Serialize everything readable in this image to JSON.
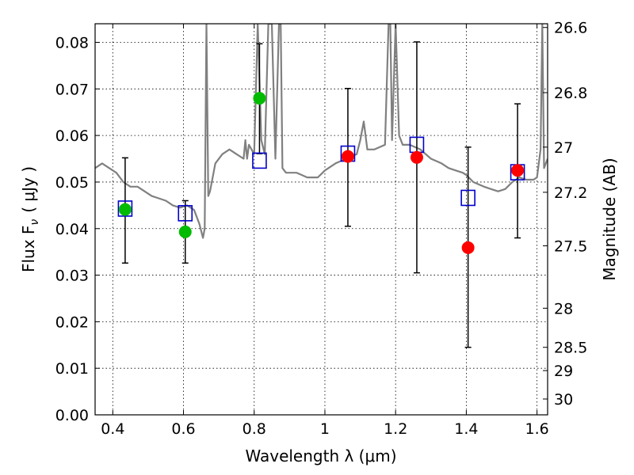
{
  "chart_data": {
    "type": "scatter",
    "title": "",
    "xlabel": "Wavelength  λ (μm)",
    "ylabel": "Flux  F",
    "ylabel_sub": "ν",
    "ylabel_unit": "( μJy )",
    "ylabel_right": "Magnitude (AB)",
    "xlim": [
      0.35,
      1.63
    ],
    "ylim": [
      0.0,
      0.084
    ],
    "grid": true,
    "x_ticks": [
      0.4,
      0.6,
      0.8,
      1.0,
      1.2,
      1.4,
      1.6
    ],
    "x_tick_labels": [
      "0.4",
      "0.6",
      "0.8",
      "1",
      "1.2",
      "1.4",
      "1.6"
    ],
    "y_ticks": [
      0.0,
      0.01,
      0.02,
      0.03,
      0.04,
      0.05,
      0.06,
      0.07,
      0.08
    ],
    "y_tick_labels": [
      "0.00",
      "0.01",
      "0.02",
      "0.03",
      "0.04",
      "0.05",
      "0.06",
      "0.07",
      "0.08"
    ],
    "right_ticks": [
      {
        "flux": 0.0832,
        "label": "26.6"
      },
      {
        "flux": 0.0692,
        "label": "26.8"
      },
      {
        "flux": 0.0575,
        "label": "27"
      },
      {
        "flux": 0.0478,
        "label": "27.2"
      },
      {
        "flux": 0.0363,
        "label": "27.5"
      },
      {
        "flux": 0.0229,
        "label": "28"
      },
      {
        "flux": 0.0145,
        "label": "28.5"
      },
      {
        "flux": 0.0095,
        "label": "29"
      },
      {
        "flux": 0.0034,
        "label": "30"
      }
    ],
    "colors": {
      "spectrum": "#808080",
      "green_points": "#00bb00",
      "red_points": "#ff0000",
      "model_boxes": "#0000cc",
      "error_bars": "#000000"
    },
    "series": [
      {
        "kind": "spectrum",
        "x": [
          0.35,
          0.37,
          0.39,
          0.41,
          0.43,
          0.45,
          0.47,
          0.49,
          0.51,
          0.53,
          0.55,
          0.57,
          0.59,
          0.61,
          0.63,
          0.645,
          0.655,
          0.66,
          0.665,
          0.67,
          0.675,
          0.69,
          0.71,
          0.73,
          0.75,
          0.77,
          0.775,
          0.78,
          0.785,
          0.8,
          0.81,
          0.82,
          0.83,
          0.84,
          0.85,
          0.86,
          0.87,
          0.875,
          0.88,
          0.89,
          0.9,
          0.92,
          0.95,
          0.98,
          1.0,
          1.03,
          1.06,
          1.09,
          1.1,
          1.11,
          1.12,
          1.14,
          1.17,
          1.18,
          1.185,
          1.19,
          1.2,
          1.21,
          1.22,
          1.24,
          1.27,
          1.3,
          1.33,
          1.35,
          1.37,
          1.39,
          1.4,
          1.42,
          1.45,
          1.47,
          1.49,
          1.51,
          1.53,
          1.55,
          1.57,
          1.59,
          1.6,
          1.61,
          1.615,
          1.62,
          1.63
        ],
        "y": [
          0.053,
          0.054,
          0.053,
          0.052,
          0.05,
          0.049,
          0.049,
          0.048,
          0.047,
          0.0465,
          0.046,
          0.045,
          0.0445,
          0.045,
          0.044,
          0.041,
          0.038,
          0.04,
          0.084,
          0.047,
          0.048,
          0.054,
          0.056,
          0.057,
          0.056,
          0.055,
          0.059,
          0.055,
          0.058,
          0.056,
          0.084,
          0.059,
          0.056,
          0.084,
          0.084,
          0.055,
          0.084,
          0.084,
          0.053,
          0.052,
          0.052,
          0.052,
          0.051,
          0.051,
          0.0525,
          0.054,
          0.055,
          0.056,
          0.059,
          0.063,
          0.057,
          0.057,
          0.058,
          0.084,
          0.084,
          0.059,
          0.084,
          0.06,
          0.058,
          0.058,
          0.057,
          0.055,
          0.054,
          0.053,
          0.0525,
          0.052,
          0.0515,
          0.05,
          0.049,
          0.0485,
          0.048,
          0.0485,
          0.05,
          0.051,
          0.0505,
          0.0505,
          0.051,
          0.057,
          0.084,
          0.053,
          0.055
        ]
      },
      {
        "kind": "model-boxes",
        "x": [
          0.435,
          0.605,
          0.815,
          1.065,
          1.26,
          1.405,
          1.545
        ],
        "y": [
          0.0443,
          0.0433,
          0.0546,
          0.0561,
          0.058,
          0.0466,
          0.0521
        ]
      },
      {
        "kind": "observed-green",
        "x": [
          0.435,
          0.605,
          0.815
        ],
        "y": [
          0.0441,
          0.0393,
          0.068
        ],
        "err_low": [
          0.0326,
          0.0326,
          0.0561
        ],
        "err_high": [
          0.0552,
          0.046,
          0.0797
        ]
      },
      {
        "kind": "observed-red",
        "x": [
          1.065,
          1.26,
          1.405,
          1.545
        ],
        "y": [
          0.0555,
          0.0553,
          0.0359,
          0.0525
        ],
        "err_low": [
          0.0405,
          0.0305,
          0.0145,
          0.038
        ],
        "err_high": [
          0.0701,
          0.0801,
          0.0575,
          0.0668
        ]
      }
    ]
  }
}
